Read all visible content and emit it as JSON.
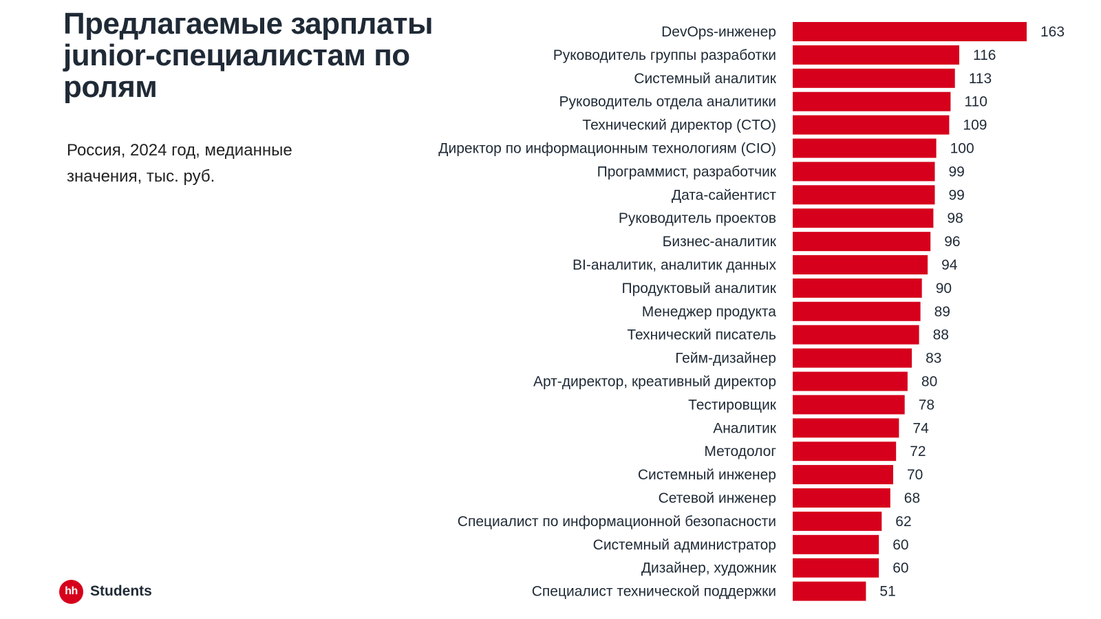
{
  "header": {
    "title": "Предлагаемые зарплаты junior-специалистам по ролям",
    "subtitle": "Россия, 2024 год, медианные значения, тыс. руб."
  },
  "logo": {
    "mark": "hh",
    "text": "Students"
  },
  "colors": {
    "bar": "#d6001c",
    "text": "#1f2a36"
  },
  "chart_data": {
    "type": "bar",
    "orientation": "horizontal",
    "categories": [
      "DevOps-инженер",
      "Руководитель группы разработки",
      "Системный аналитик",
      "Руководитель отдела аналитики",
      "Технический директор (CTO)",
      "Директор по информационным технологиям (CIO)",
      "Программист, разработчик",
      "Дата-сайентист",
      "Руководитель проектов",
      "Бизнес-аналитик",
      "BI-аналитик, аналитик данных",
      "Продуктовый аналитик",
      "Менеджер продукта",
      "Технический писатель",
      "Гейм-дизайнер",
      "Арт-директор, креативный директор",
      "Тестировщик",
      "Аналитик",
      "Методолог",
      "Системный инженер",
      "Сетевой инженер",
      "Специалист по информационной безопасности",
      "Системный администратор",
      "Дизайнер, художник",
      "Специалист технической поддержки"
    ],
    "values": [
      163,
      116,
      113,
      110,
      109,
      100,
      99,
      99,
      98,
      96,
      94,
      90,
      89,
      88,
      83,
      80,
      78,
      74,
      72,
      70,
      68,
      62,
      60,
      60,
      51
    ],
    "xlim": [
      0,
      163
    ],
    "grid": false,
    "legend": "none"
  }
}
